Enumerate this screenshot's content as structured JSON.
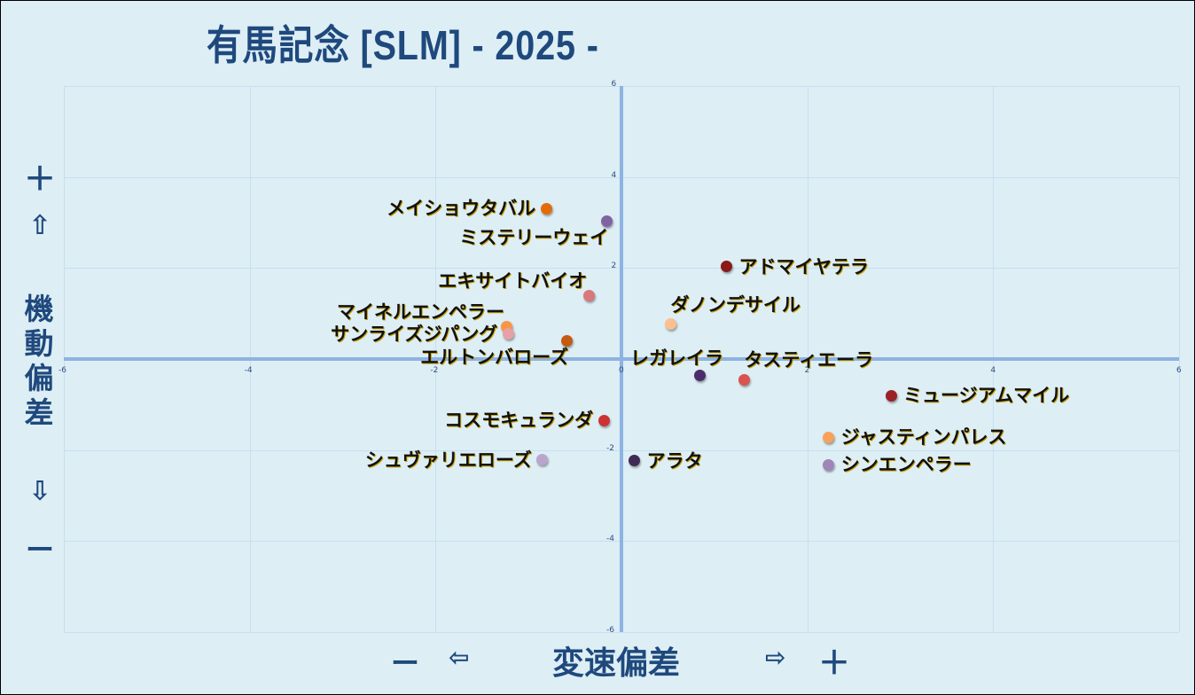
{
  "title": "有馬記念 [SLM]  - 2025 -",
  "y_axis": {
    "label": "機動偏差",
    "plus": "＋",
    "up_arrow": "⇧",
    "down_arrow": "⇩",
    "minus": "ー"
  },
  "x_axis": {
    "label": "変速偏差",
    "minus": "ー",
    "left_arrow": "⇦",
    "right_arrow": "⇨",
    "plus": "＋"
  },
  "colors": {
    "background": "#ddeef5",
    "title": "#1f497d",
    "axis_line": "#8db3e2",
    "gridline": "#c9dff0"
  },
  "chart_data": {
    "type": "scatter",
    "title": "有馬記念 [SLM]  - 2025 -",
    "xlabel": "変速偏差",
    "ylabel": "機動偏差",
    "xlim": [
      -6,
      6
    ],
    "ylim": [
      -6,
      6
    ],
    "x_ticks": [
      "-6",
      "-4",
      "-2",
      "0",
      "2",
      "4",
      "6"
    ],
    "y_ticks": [
      "6",
      "4",
      "2",
      "0",
      "-2",
      "-4",
      "-6"
    ],
    "grid": true,
    "legend": "none (point labels)",
    "points": [
      {
        "name": "メイショウタバル",
        "x": -0.81,
        "y": 3.31,
        "color": "#e36c09",
        "label_side": "left"
      },
      {
        "name": "ミステリーウェイ",
        "x": -0.16,
        "y": 3.02,
        "color": "#8064a2",
        "label_side": "below-left"
      },
      {
        "name": "エキサイトバイオ",
        "x": -0.35,
        "y": 1.4,
        "color": "#d9777a",
        "label_side": "above-left"
      },
      {
        "name": "マイネルエンペラー",
        "x": -1.24,
        "y": 0.72,
        "color": "#f79646",
        "label_side": "above-left"
      },
      {
        "name": "サンライズジパング",
        "x": -1.22,
        "y": 0.55,
        "color": "#e6a0a6",
        "label_side": "left"
      },
      {
        "name": "エルトンバローズ",
        "x": -0.59,
        "y": 0.39,
        "color": "#c55a11",
        "label_side": "below-left"
      },
      {
        "name": "アドマイヤテラ",
        "x": 1.13,
        "y": 2.03,
        "color": "#8b1a1a",
        "label_side": "right"
      },
      {
        "name": "ダノンデサイル",
        "x": 0.53,
        "y": 0.76,
        "color": "#fac090",
        "label_side": "above-right"
      },
      {
        "name": "レガレイラ",
        "x": 0.84,
        "y": -0.37,
        "color": "#4b2d6b",
        "label_side": "above"
      },
      {
        "name": "タスティエーラ",
        "x": 1.32,
        "y": -0.45,
        "color": "#d9534f",
        "label_side": "above-right"
      },
      {
        "name": "ミュージアムマイル",
        "x": 2.9,
        "y": -0.8,
        "color": "#9b2226",
        "label_side": "right"
      },
      {
        "name": "ジャスティンパレス",
        "x": 2.23,
        "y": -1.72,
        "color": "#f8a15a",
        "label_side": "right"
      },
      {
        "name": "シンエンペラー",
        "x": 2.23,
        "y": -2.32,
        "color": "#9f86b8",
        "label_side": "right"
      },
      {
        "name": "コスモキュランダ",
        "x": -0.19,
        "y": -1.35,
        "color": "#cc3333",
        "label_side": "left"
      },
      {
        "name": "シュヴァリエローズ",
        "x": -0.85,
        "y": -2.22,
        "color": "#b9a6cc",
        "label_side": "left"
      },
      {
        "name": "アラタ",
        "x": 0.14,
        "y": -2.24,
        "color": "#3f2a56",
        "label_side": "right"
      }
    ]
  }
}
